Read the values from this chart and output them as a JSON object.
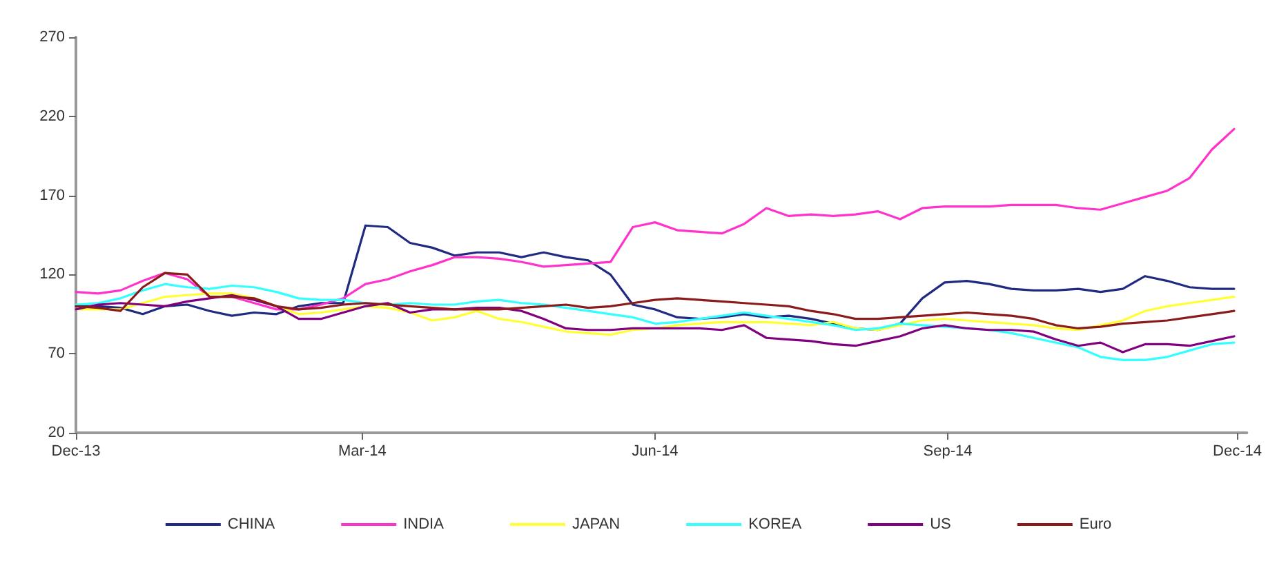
{
  "chart_data": {
    "type": "line",
    "xlim": [
      "2013-12-01",
      "2014-12-04"
    ],
    "xticks": [
      {
        "value": "2013-12-01",
        "label": "Dec-13"
      },
      {
        "value": "2014-03-01",
        "label": "Mar-14"
      },
      {
        "value": "2014-06-01",
        "label": "Jun-14"
      },
      {
        "value": "2014-09-01",
        "label": "Sep-14"
      },
      {
        "value": "2014-12-01",
        "label": "Dec-14"
      }
    ],
    "ylim": [
      20,
      270
    ],
    "yticks": [
      20,
      70,
      120,
      170,
      220,
      270
    ],
    "grid": false,
    "legend": "bottom",
    "marker": "none",
    "line_style": "solid",
    "x": [
      "2013-12-01",
      "2013-12-08",
      "2013-12-15",
      "2013-12-22",
      "2013-12-29",
      "2014-01-05",
      "2014-01-12",
      "2014-01-19",
      "2014-01-26",
      "2014-02-02",
      "2014-02-09",
      "2014-02-16",
      "2014-02-23",
      "2014-03-02",
      "2014-03-09",
      "2014-03-16",
      "2014-03-23",
      "2014-03-30",
      "2014-04-06",
      "2014-04-13",
      "2014-04-20",
      "2014-04-27",
      "2014-05-04",
      "2014-05-11",
      "2014-05-18",
      "2014-05-25",
      "2014-06-01",
      "2014-06-08",
      "2014-06-15",
      "2014-06-22",
      "2014-06-29",
      "2014-07-06",
      "2014-07-13",
      "2014-07-20",
      "2014-07-27",
      "2014-08-03",
      "2014-08-10",
      "2014-08-17",
      "2014-08-24",
      "2014-08-31",
      "2014-09-07",
      "2014-09-14",
      "2014-09-21",
      "2014-09-28",
      "2014-10-05",
      "2014-10-12",
      "2014-10-19",
      "2014-10-26",
      "2014-11-02",
      "2014-11-09",
      "2014-11-16",
      "2014-11-23",
      "2014-11-30"
    ],
    "series": [
      {
        "name": "CHINA",
        "color": "#1f2a80",
        "values": [
          100,
          100,
          99,
          95,
          100,
          101,
          97,
          94,
          96,
          95,
          100,
          102,
          102,
          151,
          150,
          140,
          137,
          132,
          134,
          134,
          131,
          134,
          131,
          129,
          120,
          101,
          98,
          93,
          92,
          93,
          95,
          93,
          94,
          92,
          89,
          86,
          85,
          89,
          105,
          115,
          116,
          114,
          111,
          110,
          110,
          111,
          109,
          111,
          119,
          116,
          112,
          111,
          111
        ]
      },
      {
        "name": "INDIA",
        "color": "#ff33cc",
        "values": [
          109,
          108,
          110,
          116,
          121,
          117,
          106,
          106,
          102,
          98,
          98,
          101,
          105,
          114,
          117,
          122,
          126,
          131,
          131,
          130,
          128,
          125,
          126,
          127,
          128,
          150,
          153,
          148,
          147,
          146,
          152,
          162,
          157,
          158,
          157,
          158,
          160,
          155,
          162,
          163,
          163,
          163,
          164,
          164,
          164,
          162,
          161,
          165,
          169,
          173,
          181,
          199,
          212
        ]
      },
      {
        "name": "JAPAN",
        "color": "#ffff33",
        "values": [
          98,
          98,
          98,
          102,
          106,
          107,
          108,
          108,
          105,
          100,
          95,
          96,
          98,
          100,
          99,
          96,
          91,
          93,
          97,
          92,
          90,
          87,
          84,
          83,
          82,
          85,
          86,
          88,
          89,
          90,
          90,
          90,
          89,
          88,
          90,
          86,
          85,
          88,
          91,
          92,
          91,
          90,
          89,
          88,
          86,
          85,
          88,
          91,
          97,
          100,
          102,
          104,
          106
        ]
      },
      {
        "name": "KOREA",
        "color": "#33ffff",
        "values": [
          101,
          102,
          105,
          110,
          114,
          112,
          111,
          113,
          112,
          109,
          105,
          104,
          104,
          102,
          101,
          102,
          101,
          101,
          103,
          104,
          102,
          101,
          99,
          97,
          95,
          93,
          89,
          90,
          92,
          94,
          96,
          94,
          92,
          90,
          88,
          85,
          86,
          89,
          88,
          87,
          86,
          85,
          83,
          80,
          77,
          74,
          68,
          66,
          66,
          68,
          72,
          76,
          77
        ]
      },
      {
        "name": "US",
        "color": "#800080",
        "values": [
          98,
          101,
          102,
          101,
          100,
          103,
          105,
          107,
          104,
          100,
          92,
          92,
          96,
          100,
          102,
          96,
          98,
          98,
          99,
          99,
          97,
          92,
          86,
          85,
          85,
          86,
          86,
          86,
          86,
          85,
          88,
          80,
          79,
          78,
          76,
          75,
          78,
          81,
          86,
          88,
          86,
          85,
          85,
          84,
          79,
          75,
          77,
          71,
          76,
          76,
          75,
          78,
          81
        ]
      },
      {
        "name": "Euro",
        "color": "#8b1a1a",
        "values": [
          100,
          99,
          97,
          112,
          121,
          120,
          106,
          106,
          105,
          100,
          98,
          99,
          101,
          102,
          101,
          100,
          99,
          98,
          98,
          98,
          99,
          100,
          101,
          99,
          100,
          102,
          104,
          105,
          104,
          103,
          102,
          101,
          100,
          97,
          95,
          92,
          92,
          93,
          94,
          95,
          96,
          95,
          94,
          92,
          88,
          86,
          87,
          89,
          90,
          91,
          93,
          95,
          97
        ]
      }
    ]
  }
}
